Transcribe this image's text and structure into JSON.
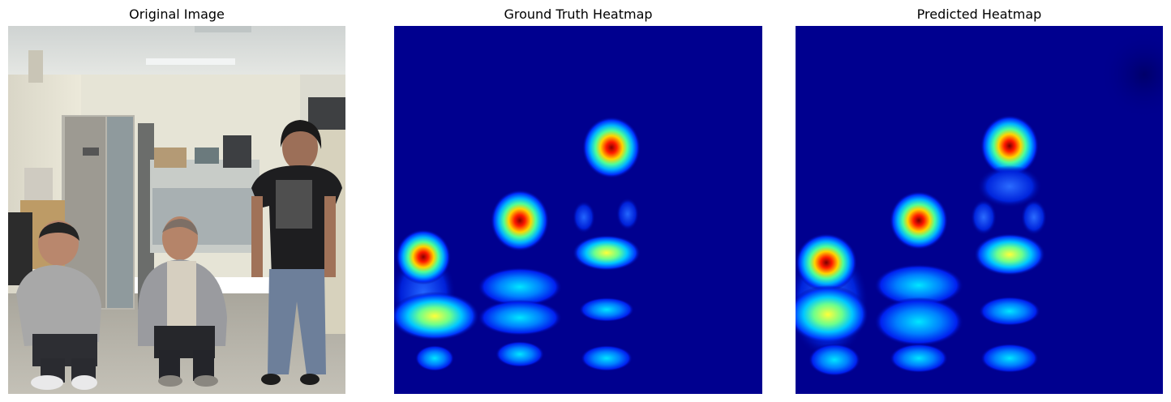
{
  "panels": [
    {
      "title": "Original Image"
    },
    {
      "title": "Ground Truth Heatmap"
    },
    {
      "title": "Predicted Heatmap"
    }
  ],
  "colors": {
    "heatmap_background": "#00008f",
    "colormap": "jet"
  }
}
